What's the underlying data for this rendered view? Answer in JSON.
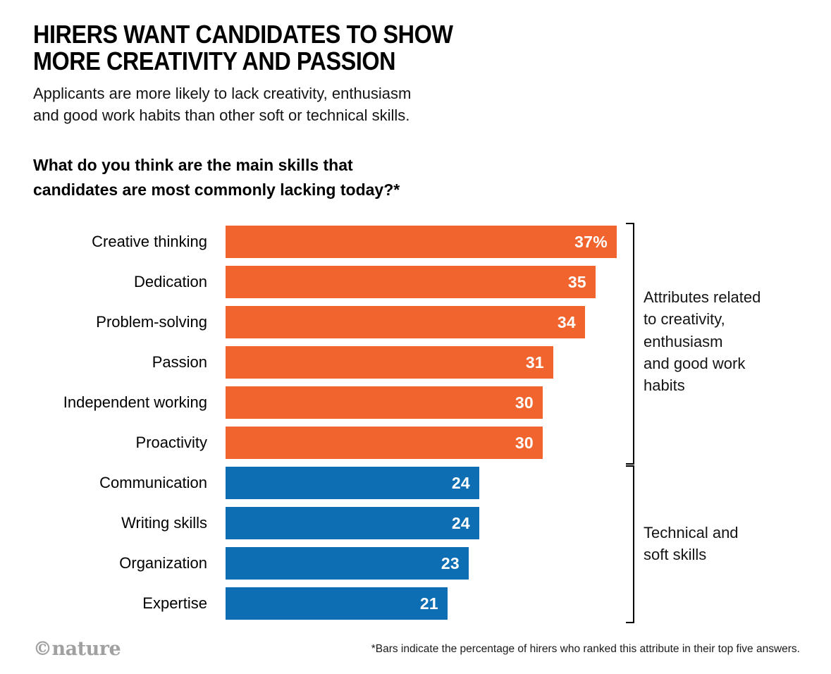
{
  "header": {
    "title": "HIRERS WANT CANDIDATES TO SHOW\nMORE CREATIVITY AND PASSION",
    "subtitle": "Applicants are more likely to lack creativity, enthusiasm\nand good work habits than other soft or technical skills.",
    "question": "What do you think are the main skills that\ncandidates are most commonly lacking today?*"
  },
  "chart_data": {
    "type": "bar",
    "orientation": "horizontal",
    "title": "What do you think are the main skills that candidates are most commonly lacking today?*",
    "categories": [
      "Creative thinking",
      "Dedication",
      "Problem-solving",
      "Passion",
      "Independent working",
      "Proactivity",
      "Communication",
      "Writing skills",
      "Organization",
      "Expertise"
    ],
    "values": [
      37,
      35,
      34,
      31,
      30,
      30,
      24,
      24,
      23,
      21
    ],
    "display_values": [
      "37%",
      "35",
      "34",
      "31",
      "30",
      "30",
      "24",
      "24",
      "23",
      "21"
    ],
    "groups": [
      "creativity",
      "creativity",
      "creativity",
      "creativity",
      "creativity",
      "creativity",
      "technical",
      "technical",
      "technical",
      "technical"
    ],
    "group_colors": {
      "creativity": "#F1642E",
      "technical": "#0D6EB4"
    },
    "xlim": [
      0,
      40
    ],
    "value_labels_inside": true,
    "legend_position": "right-brackets",
    "annotations": [
      {
        "group": "creativity",
        "text": "Attributes related\nto creativity,\nenthusiasm\nand good work\nhabits"
      },
      {
        "group": "technical",
        "text": "Technical and\nsoft skills"
      }
    ]
  },
  "footer": {
    "footnote": "*Bars indicate the percentage of hirers who ranked this attribute in their top five answers.",
    "credit": "©nature"
  }
}
